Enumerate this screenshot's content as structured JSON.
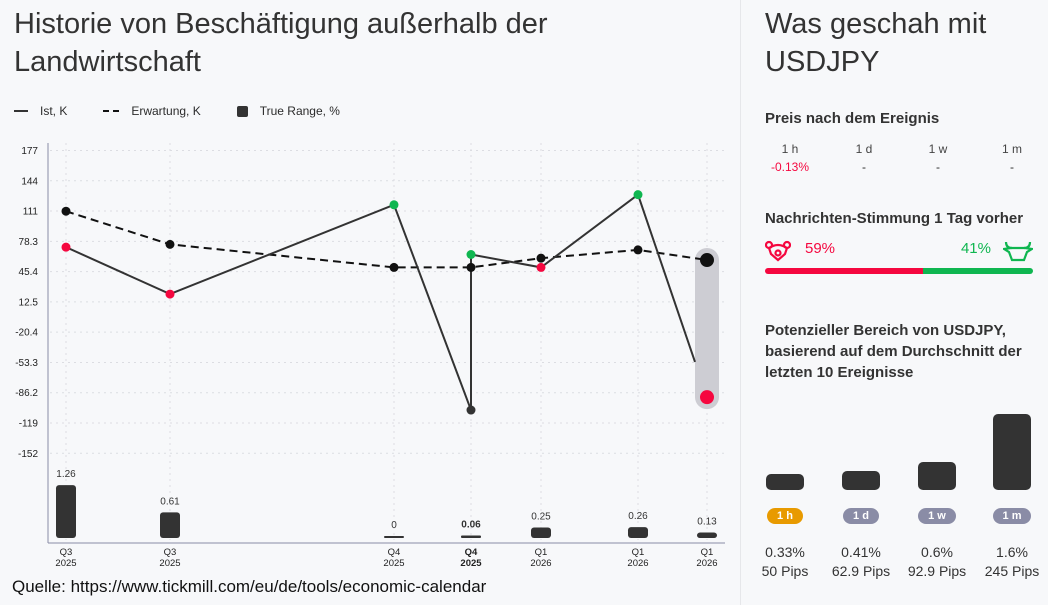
{
  "left": {
    "title": "Historie von Beschäftigung außerhalb der Landwirtschaft",
    "source": "Quelle: https://www.tickmill.com/eu/de/tools/economic-calendar"
  },
  "chart_data": {
    "type": "line",
    "legend": [
      "Ist, K",
      "Erwartung, K",
      "True Range, %"
    ],
    "legend_position": "top-left",
    "categories": [
      {
        "q": "Q3",
        "y": "2025"
      },
      {
        "q": "Q3",
        "y": "2025"
      },
      {
        "q": "Q4",
        "y": "2025"
      },
      {
        "q": "Q4",
        "y": "2025",
        "bold": true
      },
      {
        "q": "Q1",
        "y": "2026"
      },
      {
        "q": "Q1",
        "y": "2026"
      },
      {
        "q": "Q1",
        "y": "2026"
      }
    ],
    "y_ticks": [
      "177",
      "144",
      "111",
      "78.3",
      "45.4",
      "12.5",
      "-20.4",
      "-53.3",
      "-86.2",
      "-119",
      "-152"
    ],
    "ylim": [
      -152,
      177
    ],
    "grid": true,
    "series": [
      {
        "name": "Ist, K",
        "style": "solid",
        "values": [
          72,
          21,
          118,
          -105,
          50,
          129,
          null
        ],
        "revised": [
          null,
          null,
          null,
          64,
          null,
          null,
          null
        ]
      },
      {
        "name": "Erwartung, K",
        "style": "dashed",
        "values": [
          111,
          75,
          50,
          50,
          60,
          69,
          58
        ]
      }
    ],
    "forecast_range": [
      58,
      -91
    ],
    "true_range": {
      "name": "True Range, %",
      "values": [
        1.26,
        0.61,
        0,
        0.06,
        0.25,
        0.26,
        0.13
      ],
      "labels": [
        "1.26",
        "0.61",
        "0",
        "0.06",
        "0.25",
        "0.26",
        "0.13"
      ]
    },
    "colors": {
      "line": "#333333",
      "above": "#0fb650",
      "below": "#f5073f",
      "neutral": "#111111",
      "range": "#cdcdd3"
    }
  },
  "right": {
    "title": "Was geschah mit USDJPY",
    "price_heading": "Preis nach dem Ereignis",
    "price": [
      {
        "label": "1 h",
        "value": "-0.13%",
        "neg": true
      },
      {
        "label": "1 d",
        "value": "-"
      },
      {
        "label": "1 w",
        "value": "-"
      },
      {
        "label": "1 m",
        "value": "-"
      }
    ],
    "sentiment_heading": "Nachrichten-Stimmung 1 Tag vorher",
    "bear_pct": "59%",
    "bull_pct": "41%",
    "bear_value": 59,
    "bull_value": 41,
    "bear_icon": "bear-icon",
    "bull_icon": "bull-icon",
    "range_heading": "Potenzieller Bereich von USDJPY, basierend auf dem Durchschnitt der letzten 10 Ereignisse",
    "range": [
      {
        "label": "1 h",
        "pct": "0.33%",
        "pips": "50 Pips",
        "value": 0.33,
        "active": true
      },
      {
        "label": "1 d",
        "pct": "0.41%",
        "pips": "62.9 Pips",
        "value": 0.41
      },
      {
        "label": "1 w",
        "pct": "0.6%",
        "pips": "92.9 Pips",
        "value": 0.6
      },
      {
        "label": "1 m",
        "pct": "1.6%",
        "pips": "245 Pips",
        "value": 1.6
      }
    ],
    "colors": {
      "bear": "#f5073f",
      "bull": "#0fb650",
      "active_pill": "#e89a00",
      "pill": "#8a8ca6"
    }
  }
}
